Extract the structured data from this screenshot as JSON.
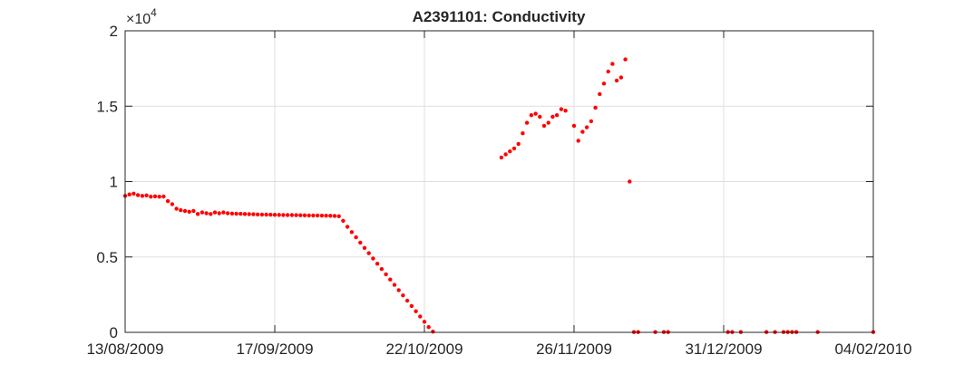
{
  "chart_data": {
    "type": "scatter",
    "title": "A2391101: Conductivity",
    "xlabel": "",
    "ylabel": "",
    "x_axis_type": "date",
    "xlim": [
      "2009-08-13",
      "2010-02-04"
    ],
    "ylim": [
      0,
      20000
    ],
    "y_exponent_label": {
      "base": "×10",
      "power": "4"
    },
    "x_ticks": [
      {
        "date": "2009-08-13",
        "label": "13/08/2009"
      },
      {
        "date": "2009-09-17",
        "label": "17/09/2009"
      },
      {
        "date": "2009-10-22",
        "label": "22/10/2009"
      },
      {
        "date": "2009-11-26",
        "label": "26/11/2009"
      },
      {
        "date": "2009-12-31",
        "label": "31/12/2009"
      },
      {
        "date": "2010-02-04",
        "label": "04/02/2010"
      }
    ],
    "y_ticks": [
      {
        "value": 0,
        "label": "0"
      },
      {
        "value": 5000,
        "label": "0.5"
      },
      {
        "value": 10000,
        "label": "1"
      },
      {
        "value": 15000,
        "label": "1.5"
      },
      {
        "value": 20000,
        "label": "2"
      }
    ],
    "grid": true,
    "marker_color": "#ff0000",
    "series": [
      {
        "points": [
          [
            "2009-08-13",
            9050
          ],
          [
            "2009-08-14",
            9150
          ],
          [
            "2009-08-15",
            9200
          ],
          [
            "2009-08-16",
            9100
          ],
          [
            "2009-08-17",
            9050
          ],
          [
            "2009-08-18",
            9080
          ],
          [
            "2009-08-19",
            9000
          ],
          [
            "2009-08-20",
            9020
          ],
          [
            "2009-08-21",
            9000
          ],
          [
            "2009-08-22",
            9010
          ],
          [
            "2009-08-23",
            8700
          ],
          [
            "2009-08-24",
            8500
          ],
          [
            "2009-08-25",
            8200
          ],
          [
            "2009-08-26",
            8100
          ],
          [
            "2009-08-27",
            8050
          ],
          [
            "2009-08-28",
            8000
          ],
          [
            "2009-08-29",
            8050
          ],
          [
            "2009-08-30",
            7850
          ],
          [
            "2009-08-31",
            7950
          ],
          [
            "2009-09-01",
            7900
          ],
          [
            "2009-09-02",
            7850
          ],
          [
            "2009-09-03",
            7950
          ],
          [
            "2009-09-04",
            7900
          ],
          [
            "2009-09-05",
            7950
          ],
          [
            "2009-09-06",
            7900
          ],
          [
            "2009-09-07",
            7880
          ],
          [
            "2009-09-08",
            7870
          ],
          [
            "2009-09-09",
            7860
          ],
          [
            "2009-09-10",
            7850
          ],
          [
            "2009-09-11",
            7840
          ],
          [
            "2009-09-12",
            7830
          ],
          [
            "2009-09-13",
            7820
          ],
          [
            "2009-09-14",
            7815
          ],
          [
            "2009-09-15",
            7810
          ],
          [
            "2009-09-16",
            7800
          ],
          [
            "2009-09-17",
            7795
          ],
          [
            "2009-09-18",
            7790
          ],
          [
            "2009-09-19",
            7785
          ],
          [
            "2009-09-20",
            7780
          ],
          [
            "2009-09-21",
            7775
          ],
          [
            "2009-09-22",
            7770
          ],
          [
            "2009-09-23",
            7765
          ],
          [
            "2009-09-24",
            7760
          ],
          [
            "2009-09-25",
            7755
          ],
          [
            "2009-09-26",
            7750
          ],
          [
            "2009-09-27",
            7745
          ],
          [
            "2009-09-28",
            7740
          ],
          [
            "2009-09-29",
            7735
          ],
          [
            "2009-09-30",
            7730
          ],
          [
            "2009-10-01",
            7720
          ],
          [
            "2009-10-02",
            7700
          ],
          [
            "2009-10-03",
            7400
          ],
          [
            "2009-10-04",
            7000
          ],
          [
            "2009-10-05",
            6650
          ],
          [
            "2009-10-06",
            6300
          ],
          [
            "2009-10-07",
            5950
          ],
          [
            "2009-10-08",
            5600
          ],
          [
            "2009-10-09",
            5250
          ],
          [
            "2009-10-10",
            4900
          ],
          [
            "2009-10-11",
            4550
          ],
          [
            "2009-10-12",
            4200
          ],
          [
            "2009-10-13",
            3850
          ],
          [
            "2009-10-14",
            3500
          ],
          [
            "2009-10-15",
            3150
          ],
          [
            "2009-10-16",
            2800
          ],
          [
            "2009-10-17",
            2450
          ],
          [
            "2009-10-18",
            2100
          ],
          [
            "2009-10-19",
            1750
          ],
          [
            "2009-10-20",
            1400
          ],
          [
            "2009-10-21",
            1050
          ],
          [
            "2009-10-22",
            700
          ],
          [
            "2009-10-23",
            350
          ],
          [
            "2009-10-24",
            50
          ],
          [
            "2009-11-09",
            11600
          ],
          [
            "2009-11-10",
            11800
          ],
          [
            "2009-11-11",
            12000
          ],
          [
            "2009-11-12",
            12200
          ],
          [
            "2009-11-13",
            12500
          ],
          [
            "2009-11-14",
            13200
          ],
          [
            "2009-11-15",
            13900
          ],
          [
            "2009-11-16",
            14400
          ],
          [
            "2009-11-17",
            14500
          ],
          [
            "2009-11-18",
            14300
          ],
          [
            "2009-11-19",
            13700
          ],
          [
            "2009-11-20",
            13900
          ],
          [
            "2009-11-21",
            14300
          ],
          [
            "2009-11-22",
            14400
          ],
          [
            "2009-11-23",
            14800
          ],
          [
            "2009-11-24",
            14700
          ],
          [
            "2009-11-26",
            13700
          ],
          [
            "2009-11-27",
            12700
          ],
          [
            "2009-11-28",
            13300
          ],
          [
            "2009-11-29",
            13600
          ],
          [
            "2009-11-30",
            14000
          ],
          [
            "2009-12-01",
            14900
          ],
          [
            "2009-12-02",
            15800
          ],
          [
            "2009-12-03",
            16500
          ],
          [
            "2009-12-04",
            17300
          ],
          [
            "2009-12-05",
            17800
          ],
          [
            "2009-12-06",
            16700
          ],
          [
            "2009-12-07",
            16900
          ],
          [
            "2009-12-08",
            18100
          ],
          [
            "2009-12-09",
            10000
          ],
          [
            "2009-12-10",
            20
          ],
          [
            "2009-12-11",
            20
          ],
          [
            "2009-12-15",
            20
          ],
          [
            "2009-12-17",
            20
          ],
          [
            "2009-12-18",
            20
          ],
          [
            "2010-01-01",
            20
          ],
          [
            "2010-01-02",
            20
          ],
          [
            "2010-01-04",
            20
          ],
          [
            "2010-01-10",
            20
          ],
          [
            "2010-01-12",
            20
          ],
          [
            "2010-01-14",
            20
          ],
          [
            "2010-01-15",
            20
          ],
          [
            "2010-01-16",
            20
          ],
          [
            "2010-01-17",
            20
          ],
          [
            "2010-01-22",
            20
          ],
          [
            "2010-02-04",
            20
          ]
        ]
      }
    ]
  }
}
